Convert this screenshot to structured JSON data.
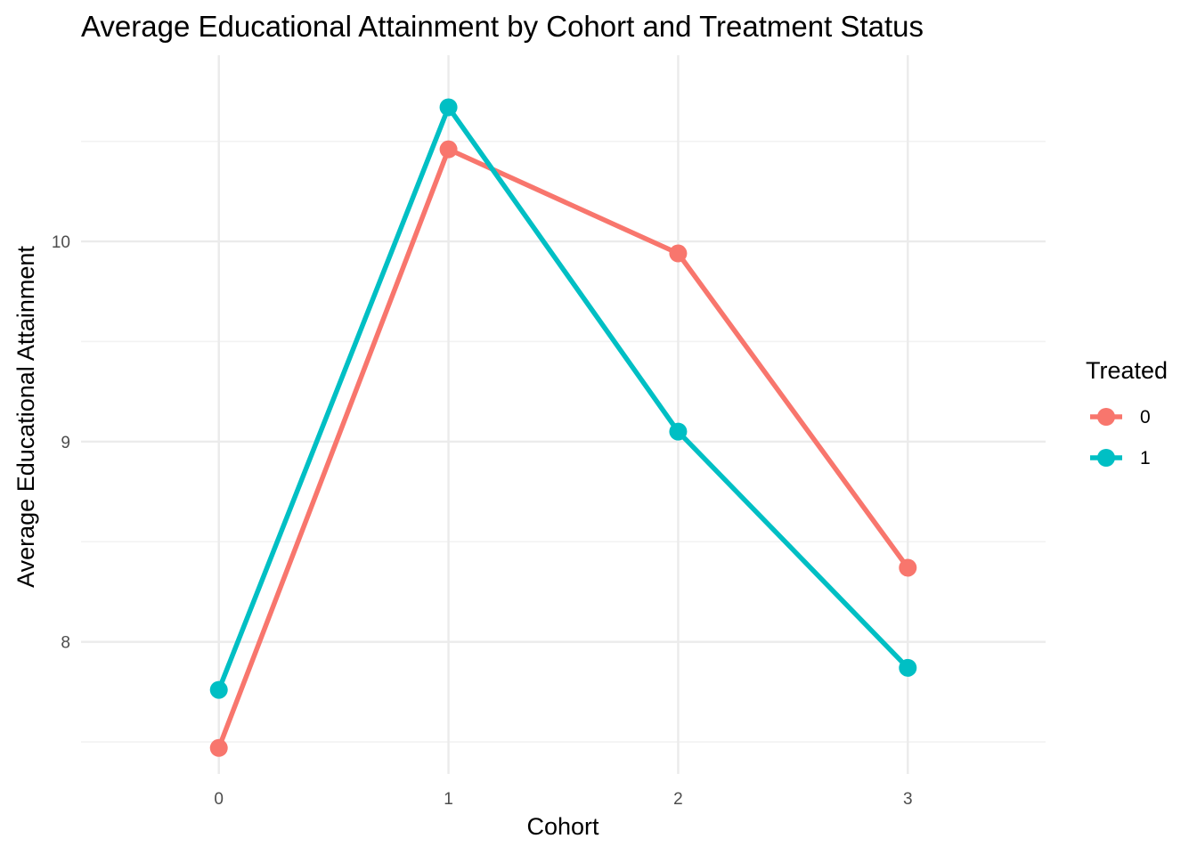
{
  "chart_data": {
    "type": "line",
    "title": "Average Educational Attainment by Cohort and Treatment Status",
    "xlabel": "Cohort",
    "ylabel": "Average Educational Attainment",
    "x": [
      0,
      1,
      2,
      3
    ],
    "x_tick_labels": [
      "0",
      "1",
      "2",
      "3"
    ],
    "y_ticks": [
      8,
      9,
      10
    ],
    "y_tick_labels": [
      "8",
      "9",
      "10"
    ],
    "xlim": [
      -0.6,
      3.6
    ],
    "ylim": [
      7.34,
      10.93
    ],
    "grid": true,
    "legend": {
      "title": "Treated",
      "placement": "right"
    },
    "series": [
      {
        "name": "0",
        "color": "#F8766D",
        "values": [
          7.47,
          10.46,
          9.94,
          8.37
        ]
      },
      {
        "name": "1",
        "color": "#00BFC4",
        "values": [
          7.76,
          10.67,
          9.05,
          7.87
        ]
      }
    ]
  }
}
